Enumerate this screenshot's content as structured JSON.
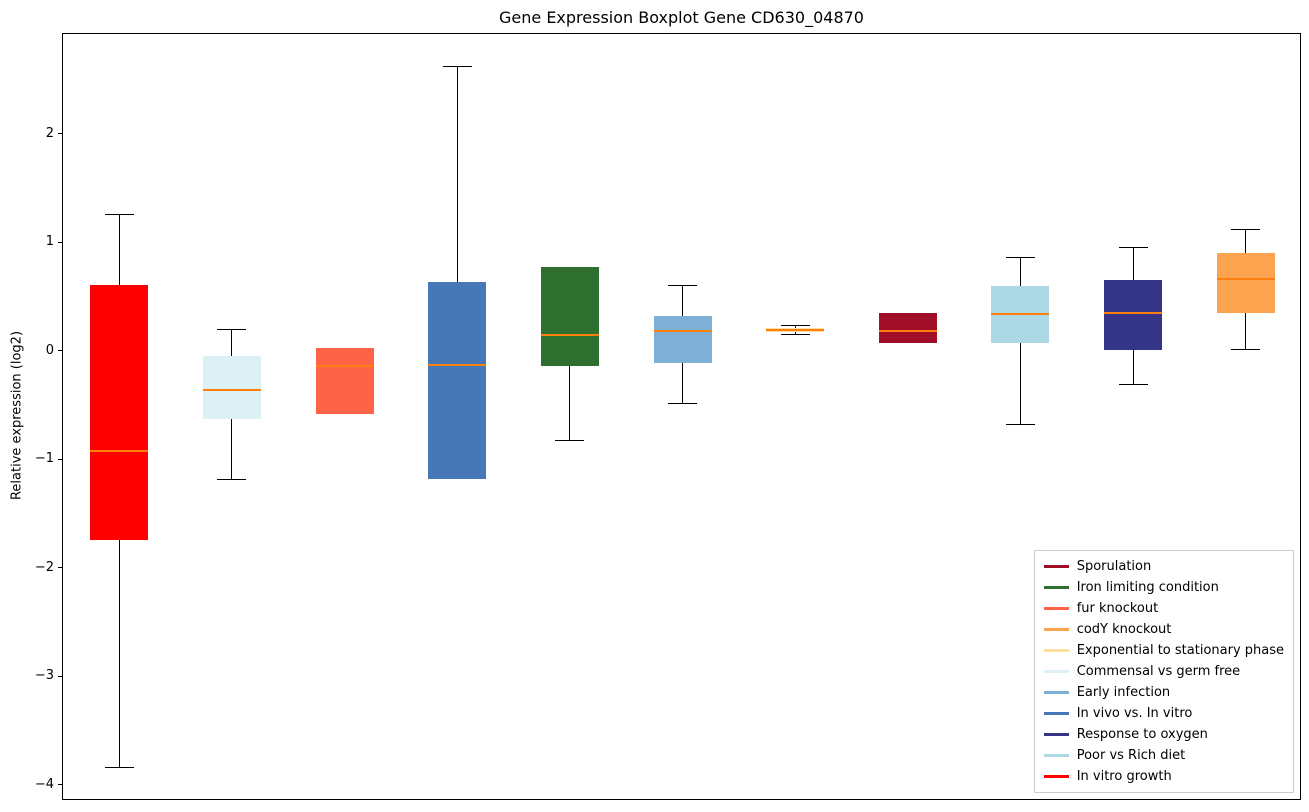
{
  "chart_data": {
    "type": "boxplot",
    "title": "Gene Expression Boxplot Gene CD630_04870",
    "ylabel": "Relative expression (log2)",
    "ylim": [
      -4.14,
      2.93
    ],
    "yticks": [
      2,
      1,
      0,
      -1,
      -2,
      -3,
      -4
    ],
    "grid": false,
    "median_color": "#ff7f0e",
    "whisker_color": "#000000",
    "boxes": [
      {
        "label": "In vitro growth",
        "color": "#ff0000",
        "whislo": -3.83,
        "q1": -1.73,
        "med": -0.91,
        "q3": 0.62,
        "whishi": 1.27
      },
      {
        "label": "Commensal vs germ free",
        "color": "#dcf0f5",
        "whislo": -1.18,
        "q1": -0.62,
        "med": -0.35,
        "q3": -0.04,
        "whishi": 0.21
      },
      {
        "label": "fur knockout",
        "color": "#ff6347",
        "whislo": -0.57,
        "q1": -0.57,
        "med": -0.13,
        "q3": 0.04,
        "whishi": 0.04
      },
      {
        "label": "In vivo vs. In vitro",
        "color": "#4678b8",
        "whislo": -1.17,
        "q1": -1.17,
        "med": -0.12,
        "q3": 0.64,
        "whishi": 2.63
      },
      {
        "label": "Iron limiting condition",
        "color": "#2e6f2f",
        "whislo": -0.82,
        "q1": -0.13,
        "med": 0.16,
        "q3": 0.78,
        "whishi": 0.78
      },
      {
        "label": "Early infection",
        "color": "#7eb0d5",
        "whislo": -0.48,
        "q1": -0.1,
        "med": 0.19,
        "q3": 0.33,
        "whishi": 0.61
      },
      {
        "label": "Exponential to stationary phase",
        "color": "#ffdfa0",
        "whislo": 0.16,
        "q1": 0.18,
        "med": 0.2,
        "q3": 0.22,
        "whishi": 0.24
      },
      {
        "label": "Sporulation",
        "color": "#a00e28",
        "whislo": 0.08,
        "q1": 0.08,
        "med": 0.19,
        "q3": 0.36,
        "whishi": 0.36
      },
      {
        "label": "Poor vs Rich diet",
        "color": "#add8e6",
        "whislo": -0.67,
        "q1": 0.08,
        "med": 0.35,
        "q3": 0.61,
        "whishi": 0.87
      },
      {
        "label": "Response to oxygen",
        "color": "#343488",
        "whislo": -0.3,
        "q1": 0.02,
        "med": 0.36,
        "q3": 0.66,
        "whishi": 0.96
      },
      {
        "label": "codY knockout",
        "color": "#fca350",
        "whislo": 0.02,
        "q1": 0.36,
        "med": 0.67,
        "q3": 0.91,
        "whishi": 1.13
      }
    ],
    "legend": {
      "position": "lower right",
      "entries": [
        {
          "label": "Sporulation",
          "color": "#a00e28"
        },
        {
          "label": "Iron limiting condition",
          "color": "#2e6f2f"
        },
        {
          "label": "fur knockout",
          "color": "#ff6347"
        },
        {
          "label": "codY knockout",
          "color": "#fca350"
        },
        {
          "label": "Exponential to stationary phase",
          "color": "#ffdfa0"
        },
        {
          "label": "Commensal vs germ free",
          "color": "#dcf0f5"
        },
        {
          "label": "Early infection",
          "color": "#7eb0d5"
        },
        {
          "label": "In vivo vs. In vitro",
          "color": "#4678b8"
        },
        {
          "label": "Response to oxygen",
          "color": "#343488"
        },
        {
          "label": "Poor vs Rich diet",
          "color": "#add8e6"
        },
        {
          "label": "In vitro growth",
          "color": "#ff0000"
        }
      ]
    }
  }
}
